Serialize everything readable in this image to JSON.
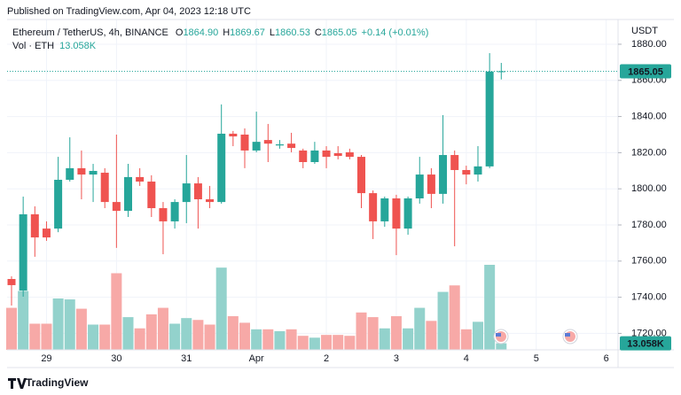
{
  "published": "Published on TradingView.com, Apr 04, 2023 12:18 UTC",
  "footer": "TradingView",
  "chart_data": {
    "type": "candlestick",
    "title": "Ethereum / TetherUS, 4h, BINANCE",
    "ohlc_legend": [
      {
        "key": "O",
        "value": "1864.90"
      },
      {
        "key": "H",
        "value": "1869.67"
      },
      {
        "key": "L",
        "value": "1860.53"
      },
      {
        "key": "C",
        "value": "1865.05"
      }
    ],
    "change": "+0.14 (+0.01%)",
    "y_unit": "USDT",
    "up_color": "#26a69a",
    "down_color": "#ef5350",
    "categories": [
      null,
      null,
      null,
      "29",
      null,
      null,
      null,
      null,
      null,
      "30",
      null,
      null,
      null,
      null,
      null,
      "31",
      null,
      null,
      null,
      null,
      null,
      "Apr",
      null,
      null,
      null,
      null,
      null,
      "2",
      null,
      null,
      null,
      null,
      null,
      "3",
      null,
      null,
      null,
      null,
      null,
      "4",
      null,
      null,
      null,
      null,
      null,
      "5",
      null,
      null,
      null,
      null,
      null,
      "6"
    ],
    "open": [
      1750.1,
      1743.7,
      1785.9,
      1778,
      1778,
      1805,
      1811.4,
      1807.9,
      1808.9,
      1792.7,
      1787.8,
      1806.5,
      1804,
      1789.3,
      1782,
      1792.7,
      1803,
      1794.2,
      1792.7,
      1830.5,
      1830,
      1821.2,
      1827,
      1824,
      1825,
      1821.2,
      1814.8,
      1821.2,
      1819.7,
      1820.2,
      1817.7,
      1797.6,
      1782,
      1794.7,
      1778,
      1794.7,
      1807.9,
      1797.2,
      1818.7,
      1810.4,
      1807.9,
      1812.4,
      1864.9,
      null,
      null,
      null,
      null,
      null,
      null,
      null,
      null,
      null
    ],
    "high": [
      1751.6,
      1795.7,
      1790.3,
      1782,
      1817.7,
      1828.5,
      1821.2,
      1813.8,
      1811.4,
      1830,
      1813.8,
      1811.4,
      1807.5,
      1792.7,
      1794.2,
      1818.7,
      1806.5,
      1801.6,
      1846.7,
      1832,
      1833.4,
      1842.7,
      1835.9,
      1827,
      1831,
      1822.2,
      1826,
      1823.6,
      1823.6,
      1822.2,
      1818.7,
      1799.1,
      1795.7,
      1796.7,
      1795.7,
      1817.7,
      1811.4,
      1840.8,
      1821.2,
      1812.8,
      1823.6,
      1875.1,
      1869.67,
      null,
      null,
      null,
      null,
      null,
      null,
      null,
      null,
      null
    ],
    "low": [
      1735.4,
      1740.3,
      1762.4,
      1771.2,
      1776,
      1804,
      1794.2,
      1792.7,
      1789.3,
      1767.3,
      1784.4,
      1801.6,
      1784.4,
      1763.8,
      1778,
      1781,
      1778,
      1789.3,
      1791.8,
      1823.6,
      1811.4,
      1820.2,
      1814.8,
      1822.2,
      1820.2,
      1811.4,
      1813.8,
      1811.4,
      1816.3,
      1816.3,
      1789.3,
      1772.2,
      1779,
      1763.3,
      1774.6,
      1791.8,
      1789.3,
      1791.8,
      1768.2,
      1802.5,
      1804,
      1811.4,
      1860.53,
      null,
      null,
      null,
      null,
      null,
      null,
      null,
      null,
      null
    ],
    "close": [
      1746.7,
      1785.9,
      1773.1,
      1773.1,
      1805,
      1811.4,
      1807.9,
      1809.9,
      1792.7,
      1787.8,
      1806.5,
      1804,
      1789.3,
      1782,
      1792.7,
      1803,
      1794.2,
      1792.7,
      1830.5,
      1829,
      1821.2,
      1826,
      1825,
      1824.6,
      1822.6,
      1814.8,
      1821.2,
      1817.7,
      1818.2,
      1817.7,
      1797.6,
      1782,
      1794.7,
      1778,
      1794.7,
      1807.9,
      1797.2,
      1818.7,
      1810.4,
      1807.9,
      1812.4,
      1864.9,
      1865.05,
      null,
      null,
      null,
      null,
      null,
      null,
      null,
      null,
      null
    ],
    "volume": {
      "name": "Vol · ETH",
      "up_color": "#93d2cc",
      "down_color": "#f7a9a7",
      "last_label": "13.058K",
      "values": [
        83.9,
        117.5,
        52.2,
        52.2,
        102.6,
        100.7,
        82.1,
        50.4,
        50.4,
        153,
        65.3,
        42.9,
        70.9,
        83.9,
        52.2,
        63.4,
        59.7,
        50.4,
        164.2,
        67.2,
        54.1,
        41,
        41,
        37.3,
        41,
        28,
        24.3,
        29.8,
        29.8,
        28,
        74.6,
        65.3,
        42.9,
        67.2,
        42.9,
        83.9,
        57.8,
        115.7,
        128.7,
        41,
        56,
        169.8,
        13.058,
        null,
        null,
        null,
        null,
        null,
        null,
        null,
        null,
        null
      ]
    },
    "last_price": {
      "value": 1865.05,
      "label": "1865.05"
    },
    "ylim": [
      1710.9,
      1893.7
    ],
    "yticks": [
      {
        "value": 1720,
        "label": "1720.00"
      },
      {
        "value": 1740,
        "label": "1740.00"
      },
      {
        "value": 1760,
        "label": "1760.00"
      },
      {
        "value": 1780,
        "label": "1780.00"
      },
      {
        "value": 1800,
        "label": "1800.00"
      },
      {
        "value": 1820,
        "label": "1820.00"
      },
      {
        "value": 1840,
        "label": "1840.00"
      },
      {
        "value": 1860,
        "label": "1860.00"
      },
      {
        "value": 1880,
        "label": "1880.00"
      }
    ],
    "grid": true
  }
}
